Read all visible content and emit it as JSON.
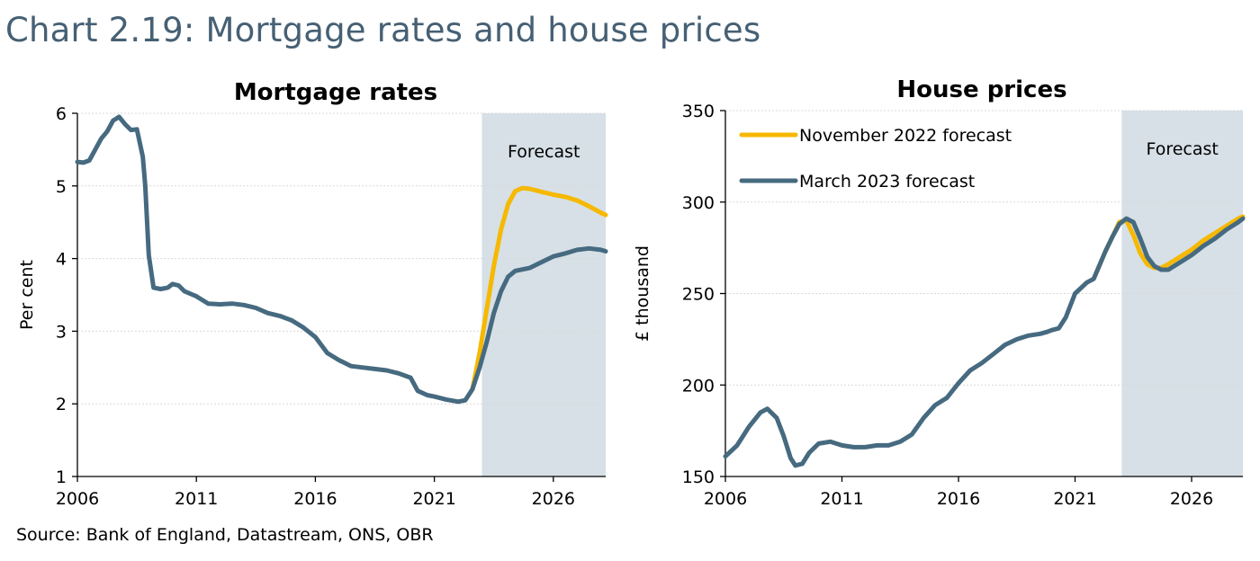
{
  "title": "Chart 2.19: Mortgage rates and house prices",
  "source": "Source: Bank of England, Datastream, ONS, OBR",
  "colors": {
    "nov2022": "#F6B800",
    "mar2023": "#466A80",
    "forecast_band": "#D6E0E6",
    "title_text": "#466074"
  },
  "chart_data": [
    {
      "type": "line",
      "title": "Mortgage rates",
      "xlabel": "",
      "ylabel": "Per cent",
      "xlim": [
        2006,
        2028.2
      ],
      "ylim": [
        1,
        6
      ],
      "xticks": [
        2006,
        2011,
        2016,
        2021,
        2026
      ],
      "xtick_labels": [
        "2006",
        "2011",
        "2016",
        "2021",
        "2026"
      ],
      "yticks": [
        1,
        2,
        3,
        4,
        5,
        6
      ],
      "ytick_labels": [
        "1",
        "2",
        "3",
        "4",
        "5",
        "6"
      ],
      "grid": true,
      "forecast_start": 2023.0,
      "forecast_label": "Forecast",
      "series": [
        {
          "name": "November 2022 forecast",
          "color": "#F6B800",
          "x": [
            2022.6,
            2022.9,
            2023.2,
            2023.5,
            2023.8,
            2024.1,
            2024.4,
            2024.7,
            2025.0,
            2025.5,
            2026.0,
            2026.5,
            2027.0,
            2027.5,
            2028.0,
            2028.2
          ],
          "y": [
            2.2,
            2.7,
            3.3,
            3.9,
            4.4,
            4.75,
            4.93,
            4.97,
            4.96,
            4.92,
            4.88,
            4.85,
            4.8,
            4.72,
            4.63,
            4.6
          ]
        },
        {
          "name": "March 2023 forecast",
          "color": "#466A80",
          "x": [
            2006.0,
            2006.25,
            2006.5,
            2006.75,
            2007.0,
            2007.25,
            2007.5,
            2007.75,
            2008.0,
            2008.25,
            2008.5,
            2008.75,
            2008.85,
            2009.0,
            2009.2,
            2009.5,
            2009.8,
            2010.0,
            2010.25,
            2010.5,
            2011.0,
            2011.5,
            2012.0,
            2012.5,
            2013.0,
            2013.5,
            2014.0,
            2014.5,
            2015.0,
            2015.5,
            2016.0,
            2016.5,
            2017.0,
            2017.5,
            2018.0,
            2018.5,
            2019.0,
            2019.5,
            2020.0,
            2020.3,
            2020.7,
            2021.0,
            2021.5,
            2022.0,
            2022.3,
            2022.6,
            2022.9,
            2023.2,
            2023.5,
            2023.8,
            2024.1,
            2024.4,
            2024.7,
            2025.0,
            2025.5,
            2026.0,
            2026.5,
            2027.0,
            2027.5,
            2028.0,
            2028.2
          ],
          "y": [
            5.33,
            5.32,
            5.35,
            5.5,
            5.65,
            5.75,
            5.9,
            5.95,
            5.85,
            5.77,
            5.78,
            5.4,
            5.0,
            4.05,
            3.6,
            3.58,
            3.6,
            3.65,
            3.63,
            3.55,
            3.48,
            3.38,
            3.37,
            3.38,
            3.36,
            3.32,
            3.25,
            3.21,
            3.15,
            3.05,
            2.92,
            2.7,
            2.6,
            2.52,
            2.5,
            2.48,
            2.46,
            2.42,
            2.36,
            2.18,
            2.12,
            2.1,
            2.06,
            2.03,
            2.05,
            2.2,
            2.5,
            2.85,
            3.25,
            3.55,
            3.75,
            3.83,
            3.85,
            3.87,
            3.95,
            4.03,
            4.07,
            4.12,
            4.14,
            4.12,
            4.1
          ]
        }
      ]
    },
    {
      "type": "line",
      "title": "House prices",
      "xlabel": "",
      "ylabel": "£ thousand",
      "xlim": [
        2006,
        2028.2
      ],
      "ylim": [
        150,
        350
      ],
      "xticks": [
        2006,
        2011,
        2016,
        2021,
        2026
      ],
      "xtick_labels": [
        "2006",
        "2011",
        "2016",
        "2021",
        "2026"
      ],
      "yticks": [
        150,
        200,
        250,
        300,
        350
      ],
      "ytick_labels": [
        "150",
        "200",
        "250",
        "300",
        "350"
      ],
      "grid": true,
      "forecast_start": 2023.0,
      "forecast_label": "Forecast",
      "legend": {
        "position": "top-left",
        "entries": [
          {
            "label": "November 2022 forecast",
            "color": "#F6B800"
          },
          {
            "label": "March 2023 forecast",
            "color": "#466A80"
          }
        ]
      },
      "series": [
        {
          "name": "November 2022 forecast",
          "color": "#F6B800",
          "x": [
            2021.8,
            2022.0,
            2022.3,
            2022.6,
            2022.9,
            2023.2,
            2023.5,
            2023.8,
            2024.1,
            2024.4,
            2024.7,
            2025.0,
            2025.5,
            2026.0,
            2026.5,
            2027.0,
            2027.5,
            2028.0,
            2028.2
          ],
          "y": [
            258,
            264,
            273,
            281,
            289,
            290,
            282,
            272,
            266,
            264,
            264,
            266,
            270,
            274,
            279,
            283,
            287,
            291,
            292
          ]
        },
        {
          "name": "March 2023 forecast",
          "color": "#466A80",
          "x": [
            2006.0,
            2006.5,
            2007.0,
            2007.5,
            2007.8,
            2008.2,
            2008.5,
            2008.8,
            2009.0,
            2009.3,
            2009.6,
            2010.0,
            2010.5,
            2011.0,
            2011.5,
            2012.0,
            2012.5,
            2013.0,
            2013.5,
            2014.0,
            2014.5,
            2015.0,
            2015.5,
            2016.0,
            2016.5,
            2017.0,
            2017.5,
            2018.0,
            2018.5,
            2019.0,
            2019.5,
            2019.8,
            2020.0,
            2020.3,
            2020.6,
            2021.0,
            2021.5,
            2021.8,
            2022.0,
            2022.3,
            2022.6,
            2022.9,
            2023.2,
            2023.5,
            2023.8,
            2024.1,
            2024.4,
            2024.7,
            2025.0,
            2025.5,
            2026.0,
            2026.5,
            2027.0,
            2027.5,
            2028.0,
            2028.2
          ],
          "y": [
            161,
            167,
            177,
            185,
            187,
            182,
            172,
            160,
            156,
            157,
            163,
            168,
            169,
            167,
            166,
            166,
            167,
            167,
            169,
            173,
            182,
            189,
            193,
            201,
            208,
            212,
            217,
            222,
            225,
            227,
            228,
            229,
            230,
            231,
            237,
            250,
            256,
            258,
            264,
            273,
            281,
            288,
            291,
            289,
            280,
            270,
            265,
            263,
            263,
            267,
            271,
            276,
            280,
            285,
            289,
            291
          ]
        }
      ]
    }
  ]
}
